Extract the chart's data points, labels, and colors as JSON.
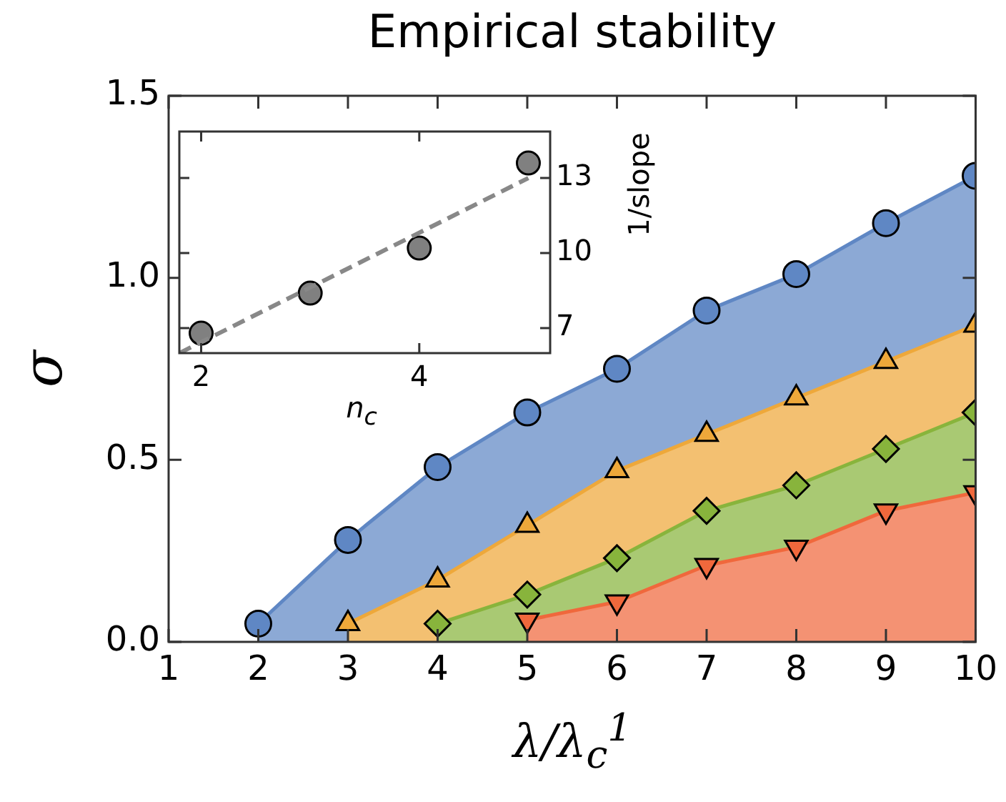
{
  "chart_data": [
    {
      "type": "area",
      "title": "Empirical stability",
      "xlabel": "λ/λ$_{c}$$^{1}$",
      "ylabel": "σ",
      "x": [
        2,
        3,
        4,
        5,
        6,
        7,
        8,
        9,
        10
      ],
      "xlim": [
        1,
        10
      ],
      "xticks": [
        1,
        2,
        3,
        4,
        5,
        6,
        7,
        8,
        9,
        10
      ],
      "ylim": [
        0,
        1.5
      ],
      "yticks": [
        {
          "value": 0,
          "label": "0.0"
        },
        {
          "value": 0.5,
          "label": "0.5"
        },
        {
          "value": 1,
          "label": "1.0"
        },
        {
          "value": 1.5,
          "label": "1.5"
        }
      ],
      "grid": false,
      "legend": false,
      "series": [
        {
          "color": "#5f87c4",
          "marker": "circle",
          "values": [
            0.05,
            0.28,
            0.48,
            0.63,
            0.75,
            0.91,
            1.01,
            1.15,
            1.28
          ]
        },
        {
          "color": "#eea83a",
          "marker": "triangle",
          "values": [
            null,
            0.05,
            0.17,
            0.32,
            0.47,
            0.57,
            0.67,
            0.77,
            0.87
          ]
        },
        {
          "color": "#88b43c",
          "marker": "diamond",
          "values": [
            null,
            null,
            0.05,
            0.13,
            0.23,
            0.36,
            0.43,
            0.53,
            0.63
          ]
        },
        {
          "color": "#f0683c",
          "marker": "triangle_down",
          "values": [
            null,
            null,
            null,
            0.06,
            0.11,
            0.21,
            0.26,
            0.36,
            0.41
          ]
        }
      ]
    },
    {
      "type": "scatter",
      "xlabel": "n$_{c}$",
      "y2label": "1/slope",
      "xlim": [
        1.8,
        5.2
      ],
      "xticks": [
        2,
        4
      ],
      "y2lim": [
        6,
        14.86
      ],
      "y2ticks": [
        7,
        10,
        13
      ],
      "grid": false,
      "legend": false,
      "series": [
        {
          "color": "#808080",
          "marker": "circle",
          "axis": "y2",
          "x": [
            2,
            3,
            4,
            5
          ],
          "values": [
            6.8,
            8.4,
            10.2,
            13.6
          ]
        },
        {
          "type": "line",
          "color": "#888888",
          "line_style": "dashed",
          "marker": "none",
          "axis": "y2",
          "x": [
            1.8,
            5
          ],
          "values": [
            6.0,
            13.0
          ]
        }
      ]
    }
  ]
}
